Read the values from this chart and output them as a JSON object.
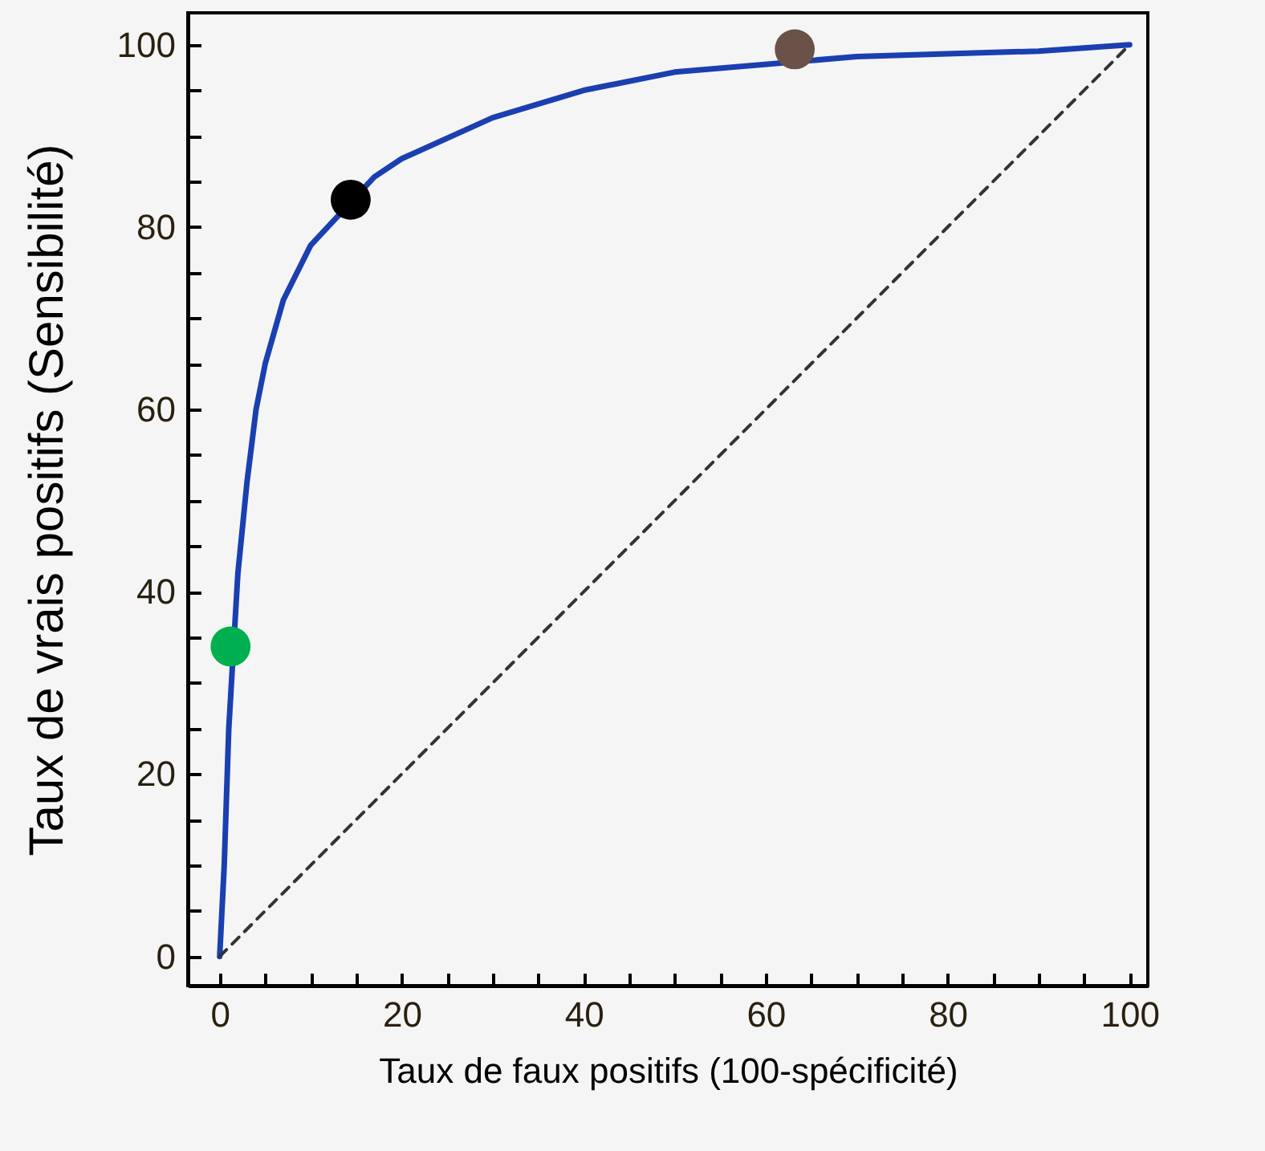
{
  "chart_data": {
    "type": "line",
    "xlabel": "Taux de faux positifs (100-spécificité)",
    "ylabel": "Taux de vrais positifs (Sensibilité)",
    "xlim": [
      -3.5,
      102
    ],
    "ylim": [
      -3.2,
      103.5
    ],
    "xticks": [
      0,
      {
        "value": 5,
        "label": null
      },
      {
        "value": 10,
        "label": null
      },
      {
        "value": 15,
        "label": null
      },
      20,
      {
        "value": 25,
        "label": null
      },
      {
        "value": 30,
        "label": null
      },
      {
        "value": 35,
        "label": null
      },
      40,
      {
        "value": 45,
        "label": null
      },
      {
        "value": 50,
        "label": null
      },
      {
        "value": 55,
        "label": null
      },
      60,
      {
        "value": 65,
        "label": null
      },
      {
        "value": 70,
        "label": null
      },
      {
        "value": 75,
        "label": null
      },
      80,
      {
        "value": 85,
        "label": null
      },
      {
        "value": 90,
        "label": null
      },
      {
        "value": 95,
        "label": null
      },
      100
    ],
    "yticks": [
      0,
      {
        "value": 5,
        "label": null
      },
      {
        "value": 10,
        "label": null
      },
      {
        "value": 15,
        "label": null
      },
      20,
      {
        "value": 25,
        "label": null
      },
      {
        "value": 30,
        "label": null
      },
      {
        "value": 35,
        "label": null
      },
      40,
      {
        "value": 45,
        "label": null
      },
      {
        "value": 50,
        "label": null
      },
      {
        "value": 55,
        "label": null
      },
      60,
      {
        "value": 65,
        "label": null
      },
      {
        "value": 70,
        "label": null
      },
      {
        "value": 75,
        "label": null
      },
      80,
      {
        "value": 85,
        "label": null
      },
      {
        "value": 90,
        "label": null
      },
      {
        "value": 95,
        "label": null
      },
      100
    ],
    "grid": false,
    "series": [
      {
        "color": "#1a3fb0",
        "line_style": "solid",
        "x": [
          0,
          0.5,
          1,
          2,
          3,
          4,
          5,
          7,
          10,
          17,
          20,
          30,
          40,
          50,
          70,
          80,
          90,
          100
        ],
        "values": [
          0,
          10,
          25,
          42,
          52,
          60,
          65,
          72,
          78,
          85.5,
          87.5,
          92,
          95,
          97,
          98.7,
          99,
          99.3,
          100
        ]
      },
      {
        "type": "line",
        "color": "#333333",
        "line_style": "dashed",
        "x": [
          0,
          100
        ],
        "values": [
          0,
          100
        ]
      },
      {
        "type": "scatter",
        "marker": "circle",
        "colors": [
          "#00b050",
          "#000000",
          "#6b5248"
        ],
        "x": [
          1.2,
          14.4,
          63.2
        ],
        "values": [
          34,
          83,
          99.5
        ]
      }
    ]
  }
}
